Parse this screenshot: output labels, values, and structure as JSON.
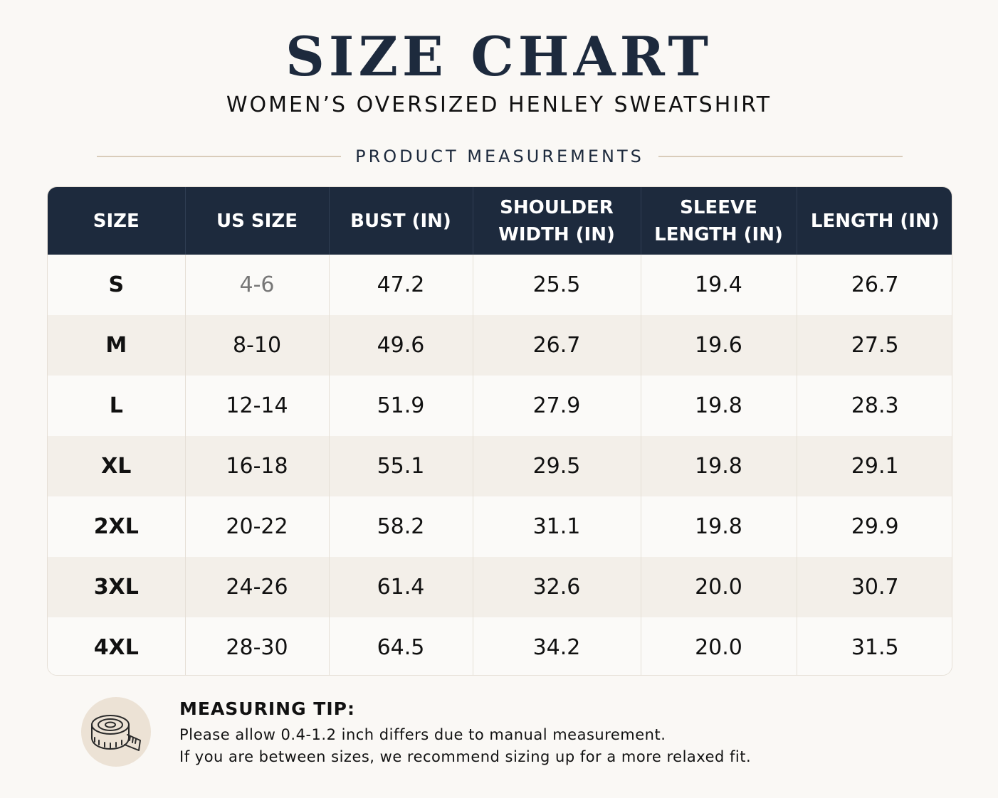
{
  "header": {
    "title": "SIZE CHART",
    "subtitle": "WOMEN’S OVERSIZED HENLEY SWEATSHIRT",
    "section_label": "PRODUCT MEASUREMENTS"
  },
  "table": {
    "columns": [
      "SIZE",
      "US SIZE",
      "BUST (IN)",
      "SHOULDER WIDTH (IN)",
      "SLEEVE LENGTH (IN)",
      "LENGTH (IN)"
    ],
    "rows": [
      [
        "S",
        "4-6",
        "47.2",
        "25.5",
        "19.4",
        "26.7"
      ],
      [
        "M",
        "8-10",
        "49.6",
        "26.7",
        "19.6",
        "27.5"
      ],
      [
        "L",
        "12-14",
        "51.9",
        "27.9",
        "19.8",
        "28.3"
      ],
      [
        "XL",
        "16-18",
        "55.1",
        "29.5",
        "19.8",
        "29.1"
      ],
      [
        "2XL",
        "20-22",
        "58.2",
        "31.1",
        "19.8",
        "29.9"
      ],
      [
        "3XL",
        "24-26",
        "61.4",
        "32.6",
        "20.0",
        "30.7"
      ],
      [
        "4XL",
        "28-30",
        "64.5",
        "34.2",
        "20.0",
        "31.5"
      ]
    ]
  },
  "tip": {
    "icon": "measuring-tape-icon",
    "title": "MEASURING TIP:",
    "line1": "Please allow 0.4-1.2 inch differs due to manual measurement.",
    "line2": "If you are between sizes, we recommend sizing up for a more relaxed fit."
  },
  "colors": {
    "navy": "#1d2a3d",
    "stripe": "#f3efe9",
    "background": "#faf8f5",
    "accent": "#d9ccba"
  }
}
